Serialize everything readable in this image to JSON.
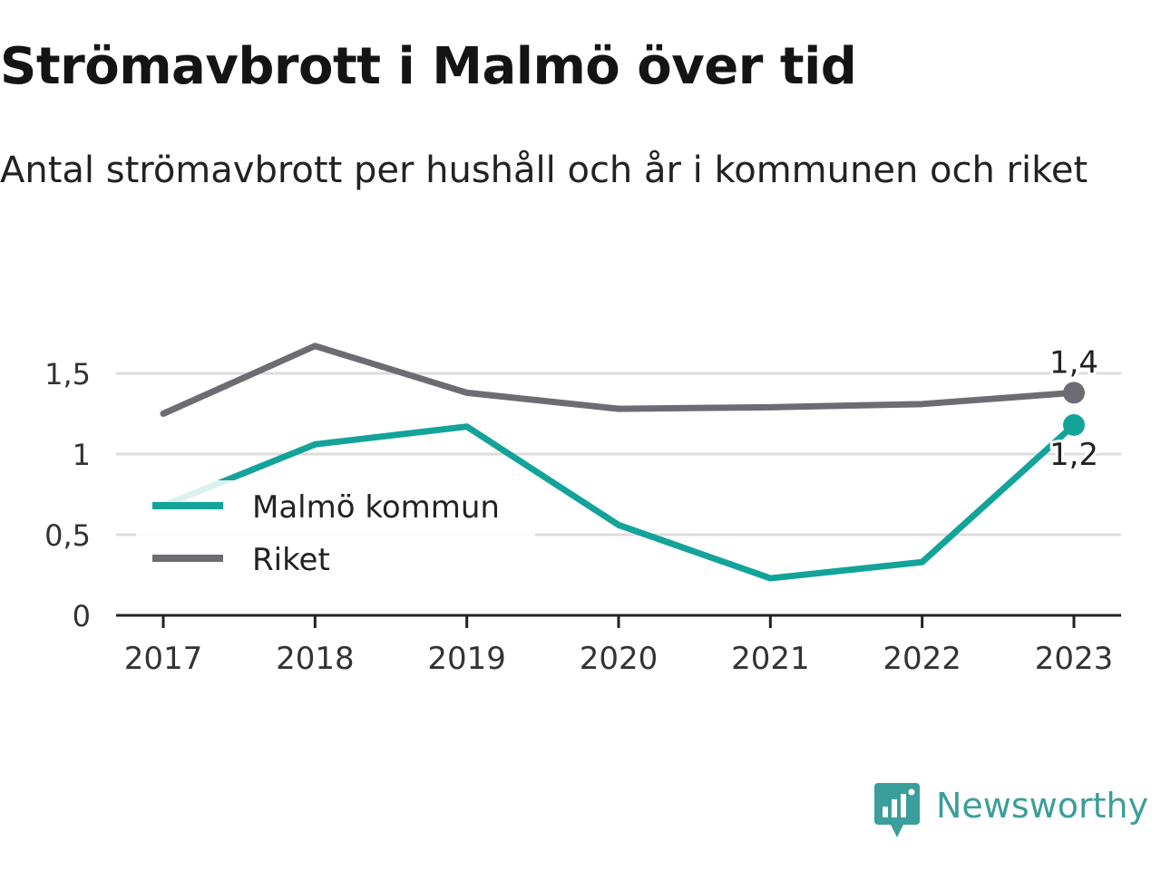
{
  "title": "Strömavbrott i Malmö över tid",
  "subtitle": "Antal strömavbrott per hushåll och år i kommunen och riket",
  "brand": {
    "name": "Newsworthy",
    "icon": "bar-chart-bubble-icon",
    "color": "#3a9e9a"
  },
  "colors": {
    "malmo": "#13a39a",
    "riket": "#6d6c72",
    "grid": "#dddddd",
    "axis": "#222222"
  },
  "chart_data": {
    "type": "line",
    "categories": [
      "2017",
      "2018",
      "2019",
      "2020",
      "2021",
      "2022",
      "2023"
    ],
    "ylim": [
      0,
      1.75
    ],
    "yticks": [
      0,
      0.5,
      1,
      1.5
    ],
    "ytick_labels": [
      "0",
      "0,5",
      "1",
      "1,5"
    ],
    "grid": true,
    "legend_position": "left-middle",
    "series": [
      {
        "name": "Malmö kommun",
        "key": "malmo",
        "values": [
          0.68,
          1.06,
          1.17,
          0.56,
          0.23,
          0.33,
          1.18
        ],
        "end_label": "1,2"
      },
      {
        "name": "Riket",
        "key": "riket",
        "values": [
          1.25,
          1.67,
          1.38,
          1.28,
          1.29,
          1.31,
          1.38
        ],
        "end_label": "1,4"
      }
    ]
  }
}
